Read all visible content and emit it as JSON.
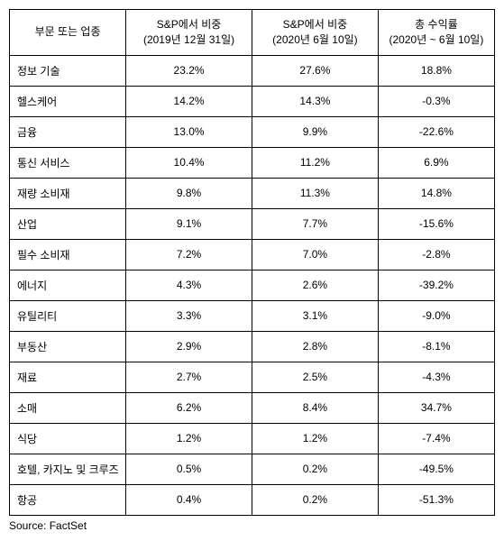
{
  "table": {
    "columns": [
      {
        "label": "부문 또는 업종",
        "class": "col-sector"
      },
      {
        "label": "S&P에서 비중\n(2019년 12월 31일)",
        "class": "col-w1"
      },
      {
        "label": "S&P에서 비중\n(2020년 6월 10일)",
        "class": "col-w2"
      },
      {
        "label": "총 수익률\n(2020년 ~ 6월 10일)",
        "class": "col-ret"
      }
    ],
    "rows": [
      {
        "sector": "정보 기술",
        "w1": "23.2%",
        "w2": "27.6%",
        "ret": "18.8%"
      },
      {
        "sector": "헬스케어",
        "w1": "14.2%",
        "w2": "14.3%",
        "ret": "-0.3%"
      },
      {
        "sector": "금융",
        "w1": "13.0%",
        "w2": "9.9%",
        "ret": "-22.6%"
      },
      {
        "sector": "통신 서비스",
        "w1": "10.4%",
        "w2": "11.2%",
        "ret": "6.9%"
      },
      {
        "sector": "재량 소비재",
        "w1": "9.8%",
        "w2": "11.3%",
        "ret": "14.8%"
      },
      {
        "sector": "산업",
        "w1": "9.1%",
        "w2": "7.7%",
        "ret": "-15.6%"
      },
      {
        "sector": "필수 소비재",
        "w1": "7.2%",
        "w2": "7.0%",
        "ret": "-2.8%"
      },
      {
        "sector": "에너지",
        "w1": "4.3%",
        "w2": "2.6%",
        "ret": "-39.2%"
      },
      {
        "sector": "유틸리티",
        "w1": "3.3%",
        "w2": "3.1%",
        "ret": "-9.0%"
      },
      {
        "sector": "부동산",
        "w1": "2.9%",
        "w2": "2.8%",
        "ret": "-8.1%"
      },
      {
        "sector": "재료",
        "w1": "2.7%",
        "w2": "2.5%",
        "ret": "-4.3%"
      },
      {
        "sector": "소매",
        "w1": "6.2%",
        "w2": "8.4%",
        "ret": "34.7%"
      },
      {
        "sector": "식당",
        "w1": "1.2%",
        "w2": "1.2%",
        "ret": "-7.4%"
      },
      {
        "sector": "호텔, 카지노 및 크루즈",
        "w1": "0.5%",
        "w2": "0.2%",
        "ret": "-49.5%"
      },
      {
        "sector": "항공",
        "w1": "0.4%",
        "w2": "0.2%",
        "ret": "-51.3%"
      }
    ]
  },
  "source": "Source: FactSet",
  "styling": {
    "font_size_body": 12,
    "border_color": "#000000",
    "background_color": "#ffffff",
    "text_color": "#000000",
    "header_align": "center",
    "sector_align": "left",
    "value_align": "center"
  }
}
